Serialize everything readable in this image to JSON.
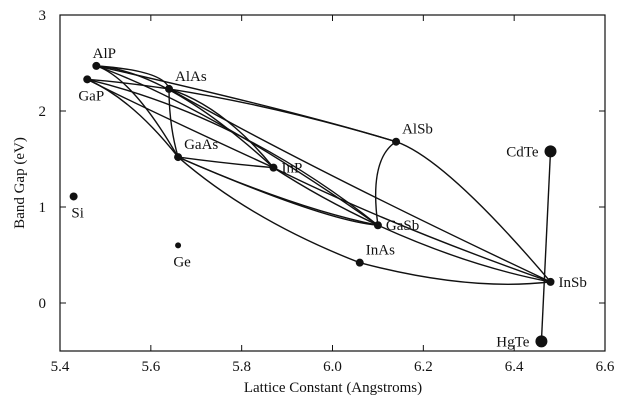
{
  "chart_data": {
    "type": "scatter",
    "title": "",
    "xlabel": "Lattice Constant (Angstroms)",
    "ylabel": "Band Gap (eV)",
    "xlim": [
      5.4,
      6.6
    ],
    "ylim": [
      -0.5,
      3
    ],
    "x_ticks": [
      {
        "value": 5.4,
        "label": "5.4"
      },
      {
        "value": 5.6,
        "label": "5.6"
      },
      {
        "value": 5.8,
        "label": "5.8"
      },
      {
        "value": 6.0,
        "label": "6.0"
      },
      {
        "value": 6.2,
        "label": "6.2"
      },
      {
        "value": 6.4,
        "label": "6.4"
      },
      {
        "value": 6.6,
        "label": "6.6"
      }
    ],
    "y_ticks": [
      {
        "value": 0,
        "label": "0"
      },
      {
        "value": 1,
        "label": "1"
      },
      {
        "value": 2,
        "label": "2"
      },
      {
        "value": 3,
        "label": "3"
      }
    ],
    "grid": false,
    "points": [
      {
        "label": "AlP",
        "x": 5.48,
        "y": 2.47,
        "marker": "small",
        "label_pos": "above"
      },
      {
        "label": "GaP",
        "x": 5.46,
        "y": 2.33,
        "marker": "small",
        "label_pos": "below"
      },
      {
        "label": "AlAs",
        "x": 5.64,
        "y": 2.23,
        "marker": "small",
        "label_pos": "upper-right"
      },
      {
        "label": "GaAs",
        "x": 5.66,
        "y": 1.52,
        "marker": "small",
        "label_pos": "upper-right"
      },
      {
        "label": "InP",
        "x": 5.87,
        "y": 1.41,
        "marker": "small",
        "label_pos": "right"
      },
      {
        "label": "AlSb",
        "x": 6.14,
        "y": 1.68,
        "marker": "small",
        "label_pos": "upper-right"
      },
      {
        "label": "GaSb",
        "x": 6.1,
        "y": 0.81,
        "marker": "small",
        "label_pos": "right"
      },
      {
        "label": "InAs",
        "x": 6.06,
        "y": 0.42,
        "marker": "small",
        "label_pos": "upper-right"
      },
      {
        "label": "InSb",
        "x": 6.48,
        "y": 0.22,
        "marker": "small",
        "label_pos": "right"
      },
      {
        "label": "CdTe",
        "x": 6.48,
        "y": 1.58,
        "marker": "large",
        "label_pos": "left"
      },
      {
        "label": "HgTe",
        "x": 6.46,
        "y": -0.4,
        "marker": "large",
        "label_pos": "left"
      },
      {
        "label": "Si",
        "x": 5.43,
        "y": 1.11,
        "marker": "small",
        "label_pos": "below"
      },
      {
        "label": "Ge",
        "x": 5.66,
        "y": 0.6,
        "marker": "tiny",
        "label_pos": "below"
      }
    ],
    "alloy_curves": [
      [
        [
          5.48,
          2.47
        ],
        [
          5.63,
          2.42
        ],
        [
          5.64,
          2.23
        ]
      ],
      [
        [
          5.48,
          2.47
        ],
        [
          5.56,
          2.34
        ],
        [
          5.66,
          1.52
        ]
      ],
      [
        [
          5.48,
          2.47
        ],
        [
          5.64,
          2.41
        ],
        [
          5.87,
          1.41
        ]
      ],
      [
        [
          5.48,
          2.47
        ],
        [
          5.73,
          2.04
        ],
        [
          6.1,
          0.81
        ]
      ],
      [
        [
          5.46,
          2.33
        ],
        [
          5.54,
          2.3
        ],
        [
          5.64,
          2.23
        ]
      ],
      [
        [
          5.46,
          2.33
        ],
        [
          5.56,
          2.12
        ],
        [
          5.66,
          1.52
        ]
      ],
      [
        [
          5.46,
          2.33
        ],
        [
          5.58,
          2.04
        ],
        [
          5.87,
          1.41
        ]
      ],
      [
        [
          5.46,
          2.33
        ],
        [
          5.8,
          1.94
        ],
        [
          6.1,
          0.81
        ]
      ],
      [
        [
          5.64,
          2.23
        ],
        [
          5.64,
          1.85
        ],
        [
          5.66,
          1.52
        ]
      ],
      [
        [
          5.64,
          2.23
        ],
        [
          5.76,
          2.05
        ],
        [
          5.87,
          1.41
        ]
      ],
      [
        [
          5.64,
          2.23
        ],
        [
          5.88,
          2.05
        ],
        [
          6.14,
          1.68
        ]
      ],
      [
        [
          5.64,
          2.23
        ],
        [
          5.95,
          1.4
        ],
        [
          6.48,
          0.22
        ]
      ],
      [
        [
          5.66,
          1.52
        ],
        [
          5.77,
          1.45
        ],
        [
          5.87,
          1.41
        ]
      ],
      [
        [
          5.66,
          1.52
        ],
        [
          5.92,
          0.98
        ],
        [
          6.1,
          0.81
        ]
      ],
      [
        [
          5.66,
          1.52
        ],
        [
          5.82,
          0.86
        ],
        [
          6.06,
          0.42
        ]
      ],
      [
        [
          5.87,
          1.41
        ],
        [
          5.97,
          1.1
        ],
        [
          6.1,
          0.81
        ]
      ],
      [
        [
          5.87,
          1.41
        ],
        [
          6.12,
          0.82
        ],
        [
          6.48,
          0.22
        ]
      ],
      [
        [
          6.14,
          1.68
        ],
        [
          6.08,
          1.5
        ],
        [
          6.1,
          0.81
        ]
      ],
      [
        [
          6.14,
          1.68
        ],
        [
          6.25,
          1.5
        ],
        [
          6.48,
          0.22
        ]
      ],
      [
        [
          5.48,
          2.47
        ],
        [
          5.92,
          2.0
        ],
        [
          6.14,
          1.68
        ]
      ],
      [
        [
          6.1,
          0.81
        ],
        [
          6.3,
          0.38
        ],
        [
          6.48,
          0.22
        ]
      ],
      [
        [
          6.06,
          0.42
        ],
        [
          6.3,
          0.12
        ],
        [
          6.48,
          0.22
        ]
      ],
      [
        [
          5.66,
          1.52
        ],
        [
          5.98,
          0.86
        ],
        [
          6.1,
          0.81
        ]
      ],
      [
        [
          6.48,
          1.58
        ],
        [
          6.47,
          0.62
        ],
        [
          6.46,
          -0.4
        ]
      ]
    ]
  }
}
